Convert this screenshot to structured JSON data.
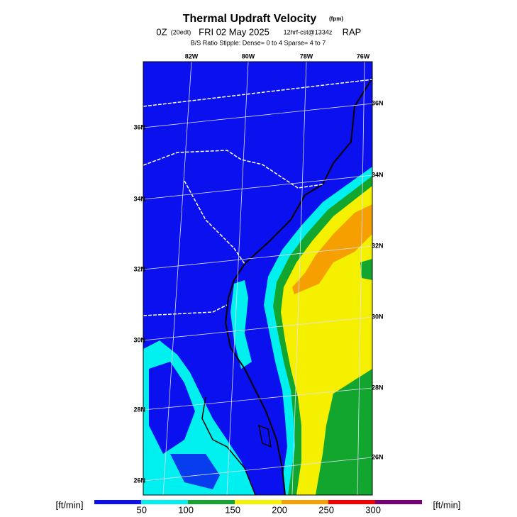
{
  "header": {
    "title": "Thermal Updraft Velocity",
    "title_unit": "(fpm)",
    "run": "0Z",
    "local": "(20edt)",
    "date": "FRI 02 May 2025",
    "forecast": "12hrf-cst@1334z",
    "model": "RAP",
    "stipple": "B/S Ratio Stipple:  Dense= 0 to 4  Sparse= 4 to 7"
  },
  "map": {
    "lon_labels": [
      "82W",
      "80W",
      "78W",
      "76W"
    ],
    "lat_labels_left": [
      "36N",
      "34N",
      "32N",
      "30N",
      "28N",
      "26N"
    ],
    "lat_labels_right": [
      "36N",
      "34N",
      "32N",
      "30N",
      "28N",
      "26N"
    ]
  },
  "colorbar": {
    "unit_left": "[ft/min]",
    "unit_right": "[ft/min]",
    "colors": [
      "#0a10ee",
      "#00f0f0",
      "#13a62e",
      "#f4f000",
      "#f5a000",
      "#f50000",
      "#7a007a"
    ],
    "ticks": [
      50,
      100,
      150,
      200,
      250,
      300
    ]
  }
}
